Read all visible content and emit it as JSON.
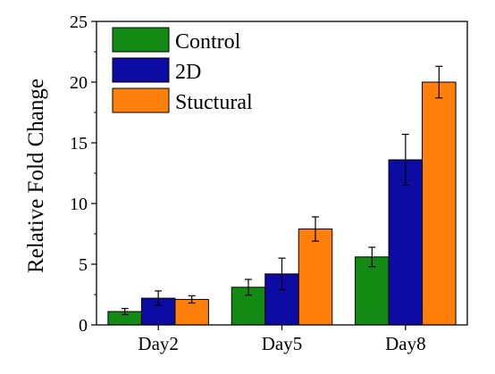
{
  "chart_data": {
    "type": "bar",
    "ylabel": "Relative Fold Change",
    "xlabel": "",
    "title": "",
    "categories": [
      "Day2",
      "Day5",
      "Day8"
    ],
    "ylim": [
      0,
      25
    ],
    "yticks": [
      "0",
      "5",
      "10",
      "15",
      "20",
      "25"
    ],
    "legend_position": "top-left",
    "grid": false,
    "series": [
      {
        "name": "Control",
        "color": "#138a13",
        "values": [
          1.1,
          3.1,
          5.6
        ],
        "errors": [
          0.25,
          0.65,
          0.8
        ]
      },
      {
        "name": "2D",
        "color": "#0c0ca4",
        "values": [
          2.2,
          4.2,
          13.6
        ],
        "errors": [
          0.6,
          1.3,
          2.1
        ]
      },
      {
        "name": "Stuctural",
        "color": "#ff7f0a",
        "values": [
          2.1,
          7.9,
          20.0
        ],
        "errors": [
          0.3,
          1.0,
          1.3
        ]
      }
    ]
  }
}
